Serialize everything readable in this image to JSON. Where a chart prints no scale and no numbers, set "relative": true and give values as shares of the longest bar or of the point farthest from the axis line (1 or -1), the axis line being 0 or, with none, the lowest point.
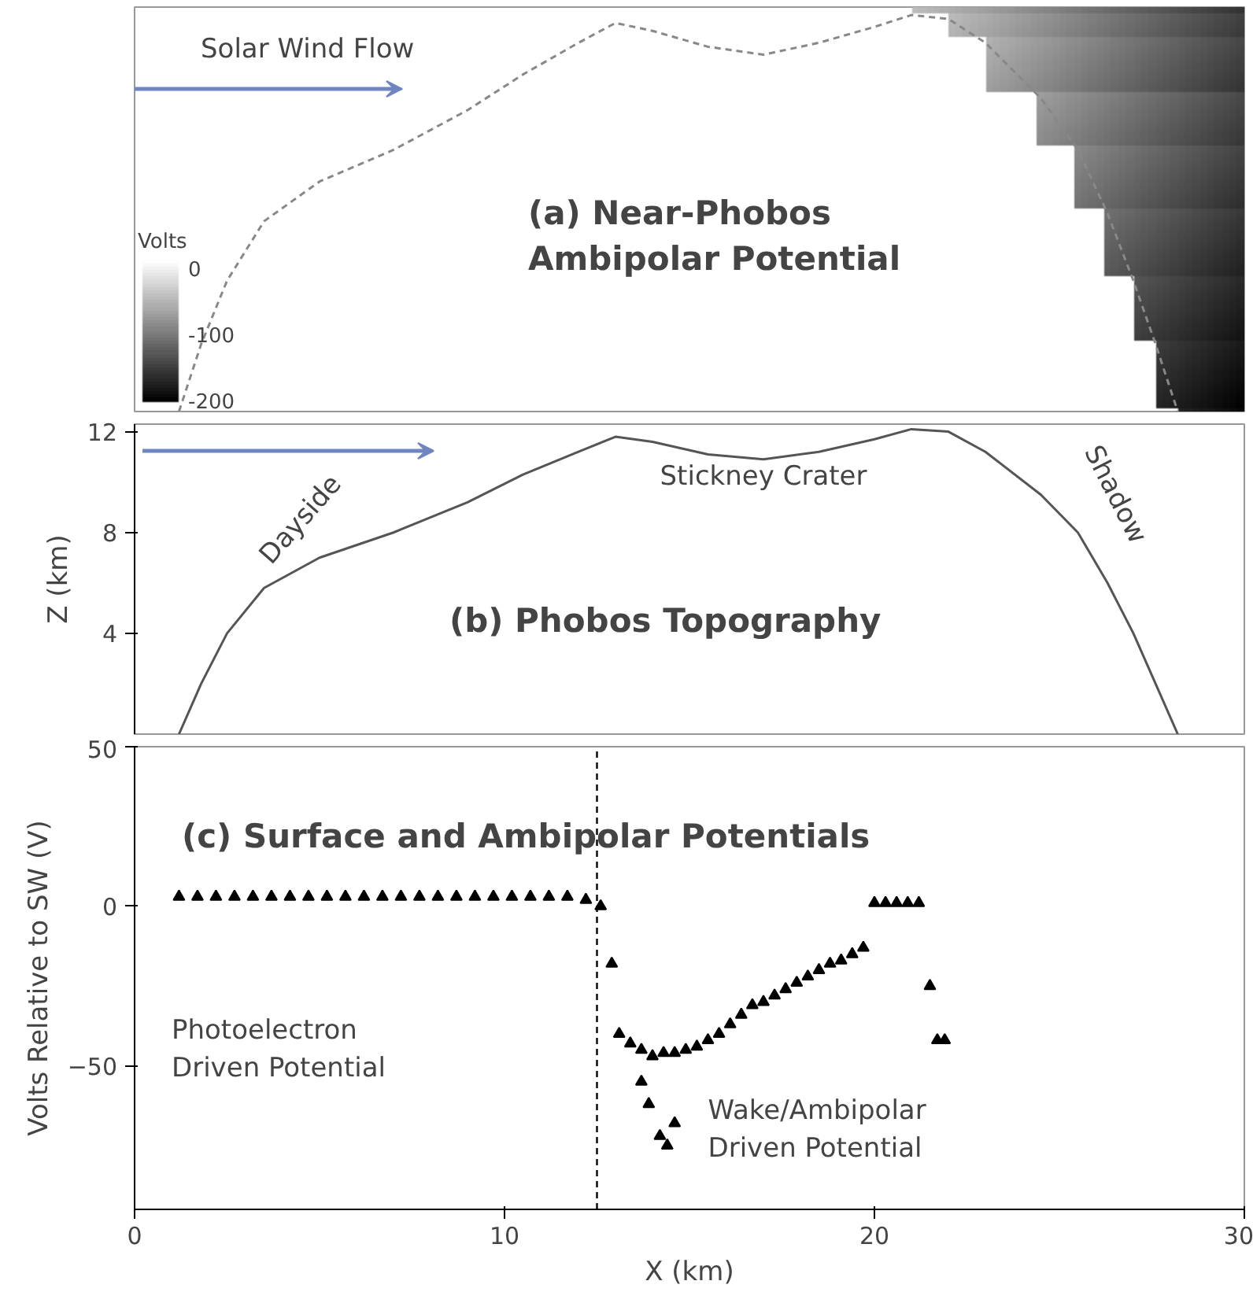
{
  "chart_data": [
    {
      "type": "line",
      "title": "(a) Near-Phobos\nAmbipolar Potential",
      "annotations": [
        "Solar Wind Flow",
        "Volts",
        "0",
        "-100",
        "-200"
      ],
      "x": [
        1.2,
        1.8,
        2.5,
        3.5,
        5,
        7,
        9,
        10.5,
        12,
        13,
        14,
        15.5,
        17,
        18.5,
        20,
        21,
        22,
        23,
        24.5,
        25.5,
        26.3,
        27,
        27.6,
        28.2
      ],
      "series": [
        {
          "color": "#888888",
          "line_style": "dashed",
          "values": [
            0,
            0.17,
            0.33,
            0.48,
            0.58,
            0.66,
            0.76,
            0.85,
            0.93,
            0.98,
            0.96,
            0.92,
            0.9,
            0.93,
            0.97,
            1,
            0.99,
            0.93,
            0.79,
            0.66,
            0.5,
            0.33,
            0.17,
            0
          ]
        }
      ],
      "xlim": [
        0,
        30
      ],
      "relative": true,
      "tick_labels": false
    },
    {
      "type": "line",
      "title": "(b) Phobos Topography",
      "ylabel": "Z (km)",
      "annotations": [
        "Dayside",
        "Stickney Crater",
        "Shadow"
      ],
      "x": [
        1.2,
        1.8,
        2.5,
        3.5,
        5,
        7,
        9,
        10.5,
        12,
        13,
        14,
        15.5,
        17,
        18.5,
        20,
        21,
        22,
        23,
        24.5,
        25.5,
        26.3,
        27,
        27.6,
        28.2
      ],
      "series": [
        {
          "color": "#555555",
          "values": [
            0,
            2,
            4,
            5.8,
            7,
            8,
            9.2,
            10.3,
            11.2,
            11.8,
            11.6,
            11.1,
            10.9,
            11.2,
            11.7,
            12.1,
            12,
            11.2,
            9.5,
            8,
            6,
            4,
            2,
            0
          ]
        }
      ],
      "xlim": [
        0,
        30
      ],
      "ylim": [
        0,
        12.3
      ],
      "xticks": [
        0,
        10,
        20,
        30
      ],
      "yticks": [
        4,
        8,
        12
      ],
      "tick_labels": "y"
    },
    {
      "type": "scatter",
      "title": "(c) Surface and Ambipolar Potentials",
      "xlabel": "X (km)",
      "ylabel": "Volts Relative to SW (V)",
      "marker": "triangle",
      "annotations": [
        "Photoelectron\nDriven Potential",
        "Wake/Ambipolar\nDriven Potential"
      ],
      "series": [
        {
          "color": "#000000",
          "x": [
            1.2,
            1.7,
            2.2,
            2.7,
            3.2,
            3.7,
            4.2,
            4.7,
            5.2,
            5.7,
            6.2,
            6.7,
            7.2,
            7.7,
            8.2,
            8.7,
            9.2,
            9.7,
            10.2,
            10.7,
            11.2,
            11.7,
            12.2,
            12.6,
            12.9,
            13.1,
            13.4,
            13.7,
            14,
            14.3,
            14.6,
            14.9,
            15.2,
            15.5,
            15.8,
            16.1,
            16.4,
            16.7,
            17,
            17.3,
            17.6,
            17.9,
            18.2,
            18.5,
            18.8,
            19.1,
            19.4,
            19.7,
            20,
            20.3,
            20.6,
            20.9,
            21.2,
            21.5,
            21.7,
            21.9,
            13.7,
            13.9,
            14.2,
            14.4,
            14.6
          ],
          "values": [
            3,
            3,
            3,
            3,
            3,
            3,
            3,
            3,
            3,
            3,
            3,
            3,
            3,
            3,
            3,
            3,
            3,
            3,
            3,
            3,
            3,
            3,
            2,
            0,
            -18,
            -40,
            -43,
            -45,
            -47,
            -46,
            -46,
            -45,
            -44,
            -42,
            -40,
            -37,
            -34,
            -31,
            -30,
            -28,
            -26,
            -24,
            -22,
            -20,
            -18,
            -17,
            -15,
            -13,
            1,
            1,
            1,
            1,
            1,
            -25,
            -42,
            -42,
            -55,
            -62,
            -72,
            -75,
            -68
          ]
        }
      ],
      "ref_lines": [
        {
          "axis": "x",
          "value": 12.5,
          "line_style": "dashed",
          "color": "#000000"
        }
      ],
      "xlim": [
        0,
        30
      ],
      "ylim": [
        -95,
        50
      ],
      "xticks": [
        0,
        10,
        20,
        30
      ],
      "yticks": [
        -50,
        0,
        50
      ]
    }
  ]
}
